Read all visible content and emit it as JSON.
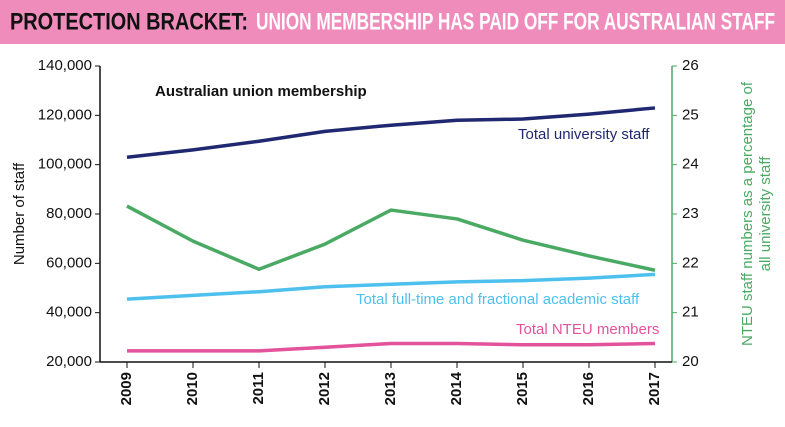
{
  "chart_data": {
    "type": "line",
    "title": "PROTECTION BRACKET:",
    "subtitle": "UNION MEMBERSHIP HAS PAID OFF FOR AUSTRALIAN STAFF",
    "annotation": "Australian union membership",
    "ylabel": "Number of staff",
    "y2label": [
      "NTEU staff numbers as a percentage of",
      "all university staff"
    ],
    "categories": [
      "2009",
      "2010",
      "2011",
      "2012",
      "2013",
      "2014",
      "2015",
      "2016",
      "2017"
    ],
    "ylim": [
      20000,
      140000
    ],
    "yticks": [
      {
        "value": 20000,
        "label": "20,000"
      },
      {
        "value": 40000,
        "label": "40,000"
      },
      {
        "value": 60000,
        "label": "60,000"
      },
      {
        "value": 80000,
        "label": "80,000"
      },
      {
        "value": 100000,
        "label": "100,000"
      },
      {
        "value": 120000,
        "label": "120,000"
      },
      {
        "value": 140000,
        "label": "140,000"
      }
    ],
    "y2lim": [
      20,
      26
    ],
    "y2ticks": [
      20,
      21,
      22,
      23,
      24,
      25,
      26
    ],
    "y2color": "#4aaa64",
    "series": [
      {
        "name": "Total university staff",
        "color": "#1f2870",
        "values": [
          103000,
          106000,
          109500,
          113500,
          116000,
          118000,
          118500,
          120500,
          123000
        ]
      },
      {
        "name": "Total full-time and fractional academic staff",
        "color": "#4dc0ee",
        "values": [
          45500,
          47000,
          48500,
          50500,
          51500,
          52500,
          53000,
          54000,
          55500
        ]
      },
      {
        "name": "Total NTEU members",
        "color": "#e2539c",
        "values": [
          24500,
          24500,
          24500,
          26000,
          27500,
          27500,
          27000,
          27000,
          27500
        ]
      },
      {
        "name": null,
        "color": "#4aaa64",
        "axis": "y2",
        "values": [
          23.16,
          22.45,
          21.88,
          22.39,
          23.08,
          22.9,
          22.47,
          22.15,
          21.86
        ]
      }
    ]
  }
}
